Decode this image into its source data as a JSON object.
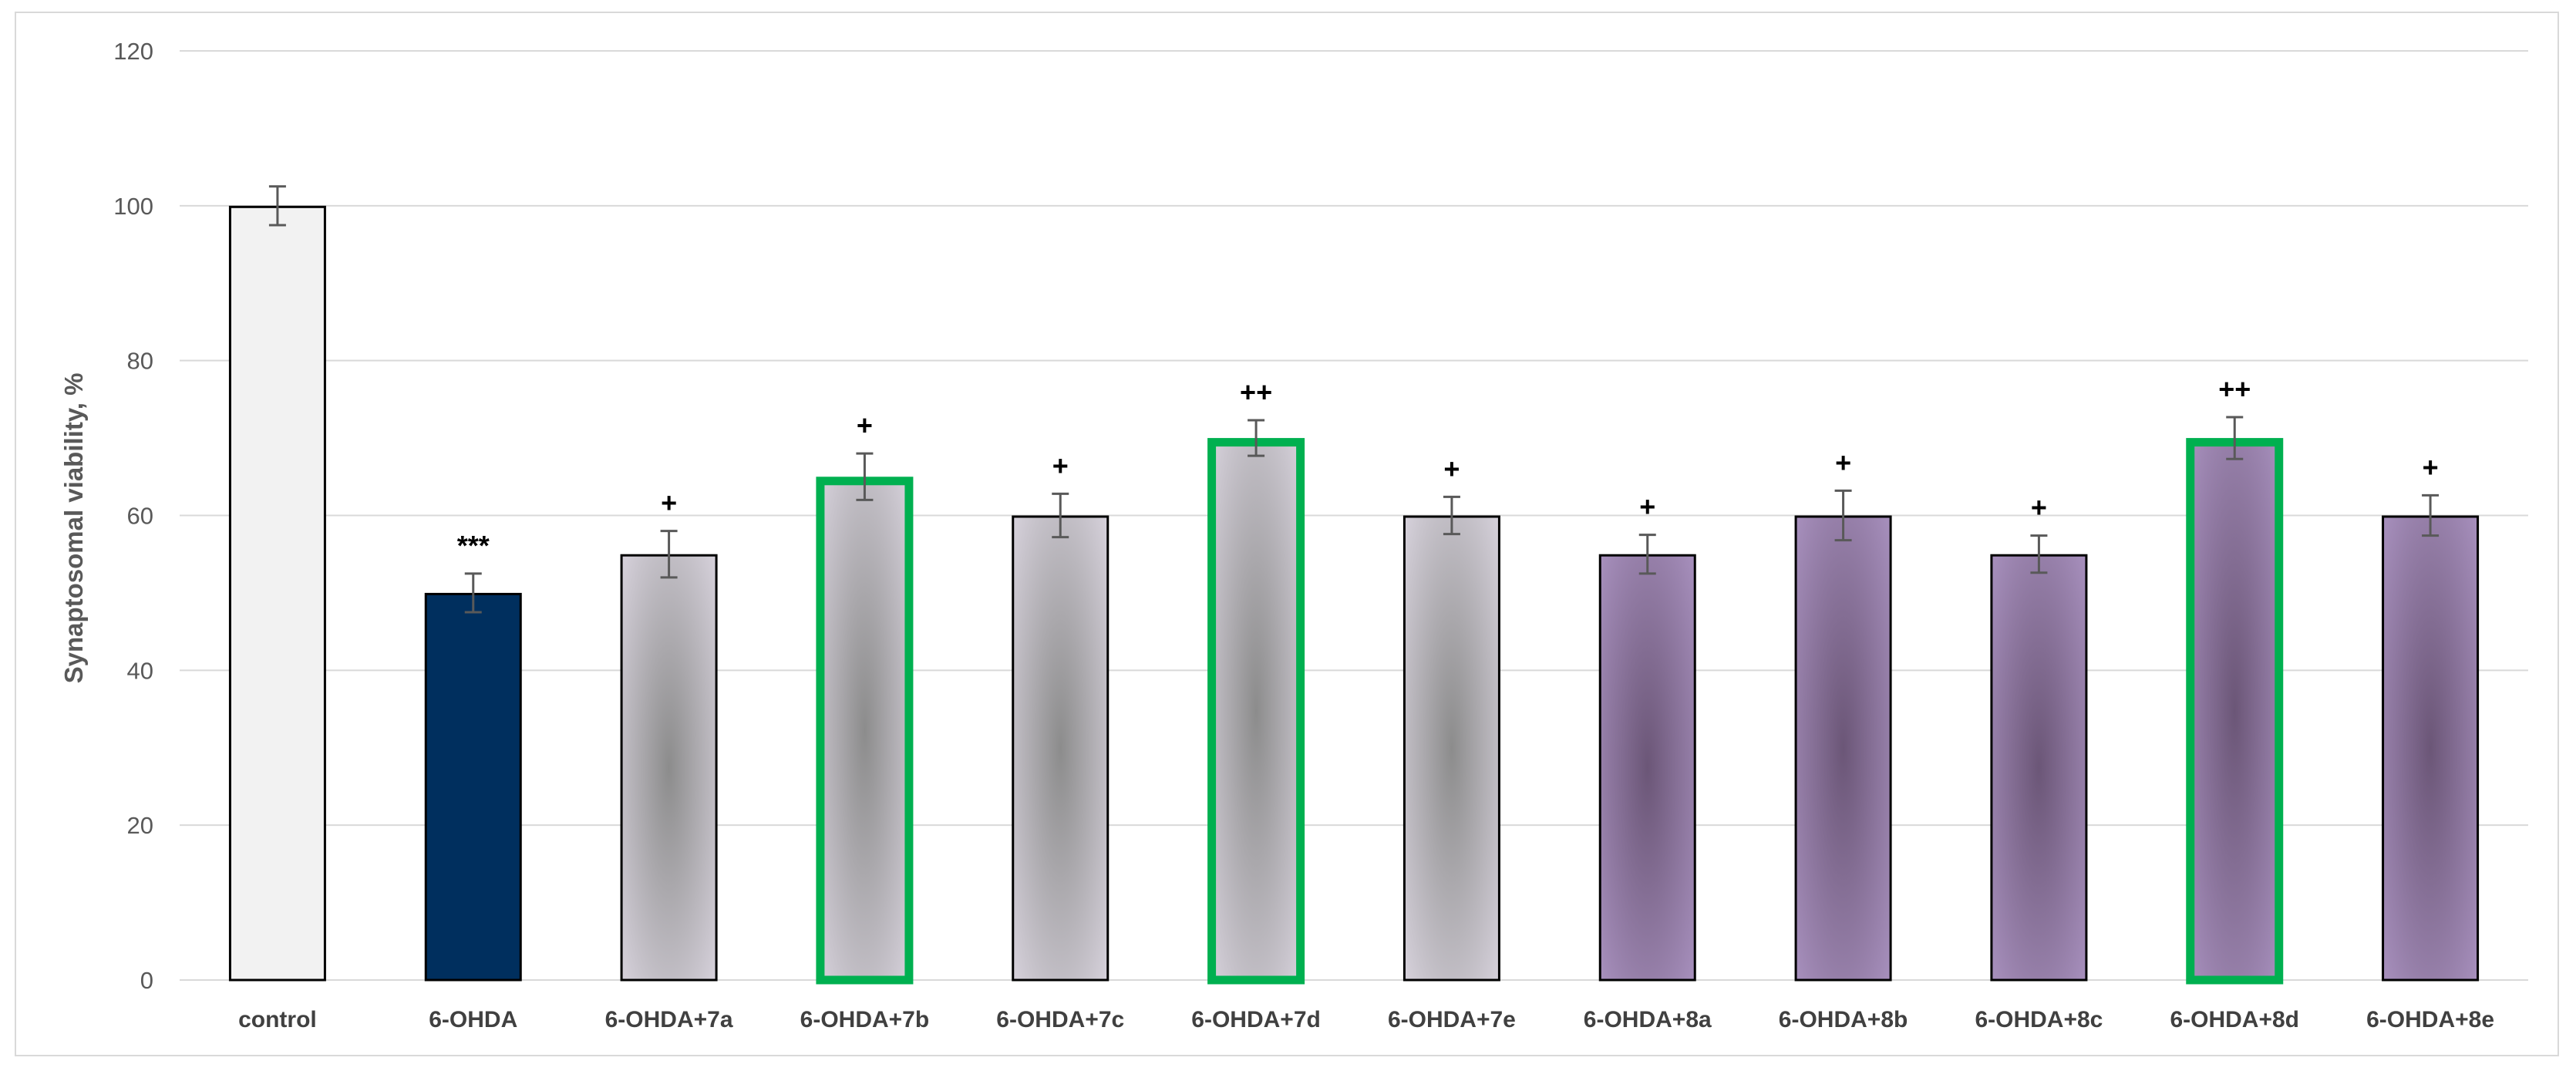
{
  "chart_data": {
    "type": "bar",
    "title": "",
    "xlabel": "",
    "ylabel": "Synaptosomal viability, %",
    "ylim": [
      0,
      120
    ],
    "yticks": [
      0,
      20,
      40,
      60,
      80,
      100,
      120
    ],
    "grid": true,
    "legend": "none",
    "categories": [
      "control",
      "6-OHDA",
      "6-OHDA+7a",
      "6-OHDA+7b",
      "6-OHDA+7c",
      "6-OHDA+7d",
      "6-OHDA+7e",
      "6-OHDA+8a",
      "6-OHDA+8b",
      "6-OHDA+8c",
      "6-OHDA+8d",
      "6-OHDA+8e"
    ],
    "values": [
      100,
      50,
      55,
      65,
      60,
      70,
      60,
      55,
      60,
      55,
      70,
      60
    ],
    "errors": [
      2.5,
      2.5,
      3,
      3,
      2.8,
      2.3,
      2.4,
      2.5,
      3.2,
      2.4,
      2.7,
      2.6
    ],
    "significance": [
      "",
      "***",
      "+",
      "+",
      "+",
      "++",
      "+",
      "+",
      "+",
      "+",
      "++",
      "+"
    ],
    "highlighted": [
      false,
      false,
      false,
      true,
      false,
      true,
      false,
      false,
      false,
      false,
      true,
      false
    ],
    "bar_styles": [
      "solid-light",
      "solid-dark",
      "gradient-gray",
      "gradient-gray",
      "gradient-gray",
      "gradient-gray",
      "gradient-gray",
      "gradient-purple",
      "gradient-purple",
      "gradient-purple",
      "gradient-purple",
      "gradient-purple"
    ]
  },
  "colors": {
    "control_fill": "#f2f2f2",
    "ohda_fill": "#002f5e",
    "gray_edge": "#e6e0ec",
    "gray_center": "#8c8c8c",
    "purple_edge": "#b49ccc",
    "purple_center": "#6b5677",
    "highlight_border": "#00b050",
    "bar_border": "#000000",
    "grid": "#d9d9d9",
    "error_bar": "#595959"
  }
}
